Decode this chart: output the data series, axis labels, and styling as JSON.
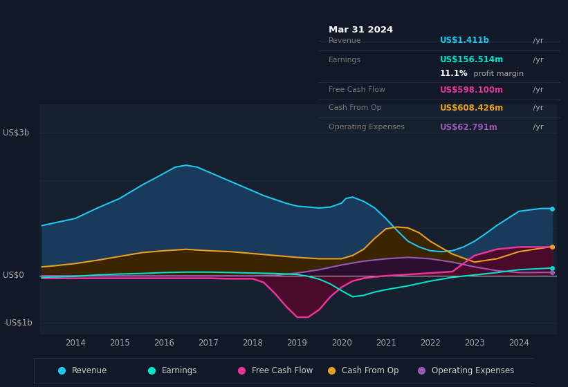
{
  "bg_color": "#111827",
  "plot_bg_color": "#16202e",
  "ylim": [
    -1.25,
    3.6
  ],
  "xlim": [
    2013.2,
    2024.85
  ],
  "x_ticks": [
    2014,
    2015,
    2016,
    2017,
    2018,
    2019,
    2020,
    2021,
    2022,
    2023,
    2024
  ],
  "series": {
    "revenue": {
      "color": "#1ec8ef",
      "fill_color": "#1a3a5c",
      "years": [
        2013.25,
        2013.5,
        2014.0,
        2014.5,
        2015.0,
        2015.5,
        2016.0,
        2016.25,
        2016.5,
        2016.75,
        2017.0,
        2017.5,
        2018.0,
        2018.25,
        2018.5,
        2018.75,
        2019.0,
        2019.25,
        2019.5,
        2019.75,
        2020.0,
        2020.1,
        2020.25,
        2020.5,
        2020.75,
        2021.0,
        2021.25,
        2021.5,
        2021.75,
        2022.0,
        2022.25,
        2022.5,
        2022.75,
        2023.0,
        2023.25,
        2023.5,
        2023.75,
        2024.0,
        2024.5,
        2024.75
      ],
      "values": [
        1.05,
        1.1,
        1.2,
        1.42,
        1.62,
        1.9,
        2.15,
        2.28,
        2.32,
        2.28,
        2.18,
        1.98,
        1.78,
        1.68,
        1.6,
        1.52,
        1.46,
        1.44,
        1.42,
        1.44,
        1.52,
        1.62,
        1.65,
        1.56,
        1.42,
        1.2,
        0.95,
        0.72,
        0.6,
        0.52,
        0.5,
        0.52,
        0.6,
        0.72,
        0.88,
        1.05,
        1.2,
        1.35,
        1.41,
        1.41
      ]
    },
    "earnings": {
      "color": "#00e5c8",
      "years": [
        2013.25,
        2014.0,
        2014.5,
        2015.0,
        2015.5,
        2016.0,
        2016.5,
        2017.0,
        2017.5,
        2018.0,
        2018.5,
        2019.0,
        2019.25,
        2019.5,
        2019.75,
        2020.0,
        2020.25,
        2020.5,
        2020.75,
        2021.0,
        2021.5,
        2022.0,
        2022.5,
        2023.0,
        2023.5,
        2024.0,
        2024.75
      ],
      "values": [
        -0.04,
        -0.02,
        0.01,
        0.03,
        0.04,
        0.06,
        0.07,
        0.07,
        0.06,
        0.05,
        0.04,
        0.02,
        -0.02,
        -0.08,
        -0.18,
        -0.32,
        -0.45,
        -0.42,
        -0.35,
        -0.3,
        -0.22,
        -0.12,
        -0.04,
        0.01,
        0.06,
        0.12,
        0.156
      ]
    },
    "free_cash_flow": {
      "color": "#e8359a",
      "fill_color": "#4a0a2a",
      "years": [
        2013.25,
        2014.0,
        2014.5,
        2015.0,
        2015.5,
        2016.0,
        2016.5,
        2017.0,
        2017.5,
        2018.0,
        2018.25,
        2018.5,
        2018.75,
        2019.0,
        2019.25,
        2019.5,
        2019.75,
        2020.0,
        2020.25,
        2020.5,
        2020.75,
        2021.0,
        2021.5,
        2022.0,
        2022.5,
        2023.0,
        2023.5,
        2024.0,
        2024.75
      ],
      "values": [
        -0.06,
        -0.06,
        -0.06,
        -0.06,
        -0.06,
        -0.06,
        -0.06,
        -0.06,
        -0.07,
        -0.07,
        -0.15,
        -0.38,
        -0.65,
        -0.88,
        -0.88,
        -0.72,
        -0.45,
        -0.25,
        -0.12,
        -0.06,
        -0.03,
        -0.01,
        0.02,
        0.05,
        0.08,
        0.42,
        0.55,
        0.598,
        0.598
      ]
    },
    "cash_from_op": {
      "color": "#e8a020",
      "fill_color": "#3a2500",
      "years": [
        2013.25,
        2013.5,
        2014.0,
        2014.5,
        2015.0,
        2015.5,
        2016.0,
        2016.5,
        2017.0,
        2017.5,
        2018.0,
        2018.5,
        2019.0,
        2019.5,
        2020.0,
        2020.25,
        2020.5,
        2020.75,
        2021.0,
        2021.25,
        2021.5,
        2021.75,
        2022.0,
        2022.5,
        2023.0,
        2023.5,
        2024.0,
        2024.75
      ],
      "values": [
        0.18,
        0.2,
        0.25,
        0.32,
        0.4,
        0.48,
        0.52,
        0.55,
        0.52,
        0.5,
        0.46,
        0.42,
        0.38,
        0.35,
        0.35,
        0.42,
        0.55,
        0.78,
        0.98,
        1.02,
        1.0,
        0.9,
        0.72,
        0.45,
        0.28,
        0.35,
        0.5,
        0.608
      ]
    },
    "operating_expenses": {
      "color": "#9b59b6",
      "fill_color": "#2a0a3a",
      "years": [
        2013.25,
        2014.0,
        2014.5,
        2015.0,
        2015.5,
        2016.0,
        2016.5,
        2017.0,
        2017.5,
        2018.0,
        2018.5,
        2019.0,
        2019.5,
        2020.0,
        2020.5,
        2021.0,
        2021.5,
        2022.0,
        2022.5,
        2023.0,
        2023.5,
        2024.0,
        2024.75
      ],
      "values": [
        -0.01,
        -0.01,
        -0.01,
        -0.01,
        -0.01,
        -0.01,
        -0.01,
        -0.01,
        -0.01,
        -0.01,
        0.0,
        0.05,
        0.12,
        0.22,
        0.3,
        0.35,
        0.38,
        0.35,
        0.28,
        0.18,
        0.1,
        0.06,
        0.063
      ]
    }
  },
  "legend": [
    {
      "label": "Revenue",
      "color": "#1ec8ef"
    },
    {
      "label": "Earnings",
      "color": "#00e5c8"
    },
    {
      "label": "Free Cash Flow",
      "color": "#e8359a"
    },
    {
      "label": "Cash From Op",
      "color": "#e8a020"
    },
    {
      "label": "Operating Expenses",
      "color": "#9b59b6"
    }
  ]
}
